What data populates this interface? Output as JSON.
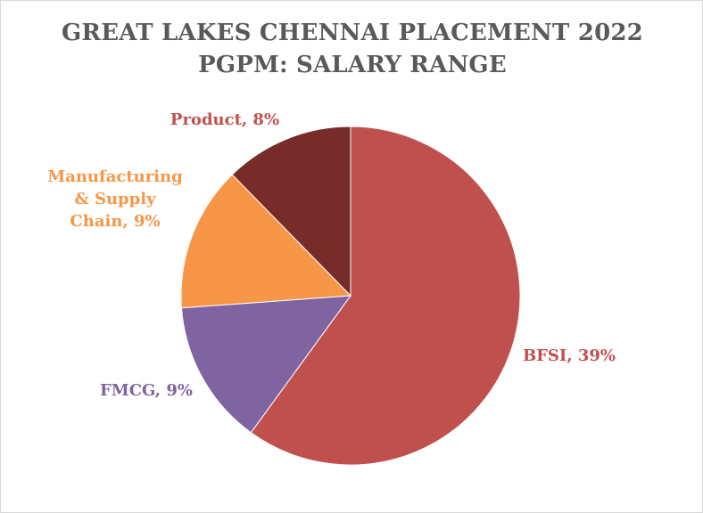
{
  "chart_data": {
    "type": "pie",
    "title_lines": [
      "GREAT LAKES CHENNAI PLACEMENT 2022",
      "PGPM: SALARY RANGE"
    ],
    "slices": [
      {
        "label": "BFSI",
        "value_label": "39%",
        "value": 39,
        "color": "#c0504d",
        "label_lines": [
          "BFSI, 39%"
        ]
      },
      {
        "label": "FMCG",
        "value_label": "9%",
        "value": 9,
        "color": "#8064a2",
        "label_lines": [
          "FMCG, 9%"
        ]
      },
      {
        "label": "Manufacturing & Supply Chain",
        "value_label": "9%",
        "value": 9,
        "color": "#f79646",
        "label_lines": [
          "Manufacturing",
          "& Supply",
          "Chain, 9%"
        ]
      },
      {
        "label": "Product",
        "value_label": "8%",
        "value": 8,
        "color": "#772c2a",
        "label_lines": [
          "Product, 8%"
        ]
      }
    ]
  }
}
